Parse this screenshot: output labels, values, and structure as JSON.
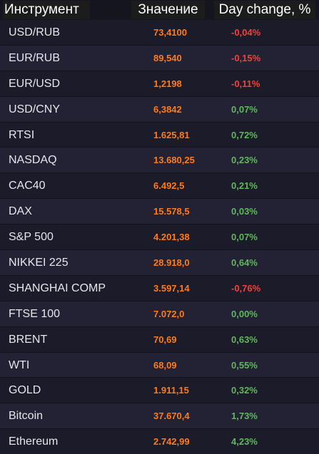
{
  "header": {
    "instrument": "Инструмент",
    "value": "Значение",
    "change": "Day change, %"
  },
  "colors": {
    "value": "#ff7b1a",
    "positive": "#5fb85a",
    "negative": "#f0413a"
  },
  "rows": [
    {
      "name": "USD/RUB",
      "value": "73,4100",
      "change": "-0,04%",
      "trend": "neg"
    },
    {
      "name": "EUR/RUB",
      "value": "89,540",
      "change": "-0,15%",
      "trend": "neg"
    },
    {
      "name": "EUR/USD",
      "value": "1,2198",
      "change": "-0,11%",
      "trend": "neg"
    },
    {
      "name": "USD/CNY",
      "value": "6,3842",
      "change": "0,07%",
      "trend": "pos"
    },
    {
      "name": "RTSI",
      "value": "1.625,81",
      "change": "0,72%",
      "trend": "pos"
    },
    {
      "name": "NASDAQ",
      "value": "13.680,25",
      "change": "0,23%",
      "trend": "pos"
    },
    {
      "name": "CAC40",
      "value": "6.492,5",
      "change": "0,21%",
      "trend": "pos"
    },
    {
      "name": "DAX",
      "value": "15.578,5",
      "change": "0,03%",
      "trend": "pos"
    },
    {
      "name": "S&P 500",
      "value": "4.201,38",
      "change": "0,07%",
      "trend": "pos"
    },
    {
      "name": "NIKKEI 225",
      "value": "28.918,0",
      "change": "0,64%",
      "trend": "pos"
    },
    {
      "name": "SHANGHAI COMP",
      "value": "3.597,14",
      "change": "-0,76%",
      "trend": "neg"
    },
    {
      "name": "FTSE 100",
      "value": "7.072,0",
      "change": "0,00%",
      "trend": "pos"
    },
    {
      "name": "BRENT",
      "value": "70,69",
      "change": "0,63%",
      "trend": "pos"
    },
    {
      "name": "WTI",
      "value": "68,09",
      "change": "0,55%",
      "trend": "pos"
    },
    {
      "name": "GOLD",
      "value": "1.911,15",
      "change": "0,32%",
      "trend": "pos"
    },
    {
      "name": "Bitcoin",
      "value": "37.670,4",
      "change": "1,73%",
      "trend": "pos"
    },
    {
      "name": "Ethereum",
      "value": "2.742,99",
      "change": "4,23%",
      "trend": "pos"
    }
  ]
}
